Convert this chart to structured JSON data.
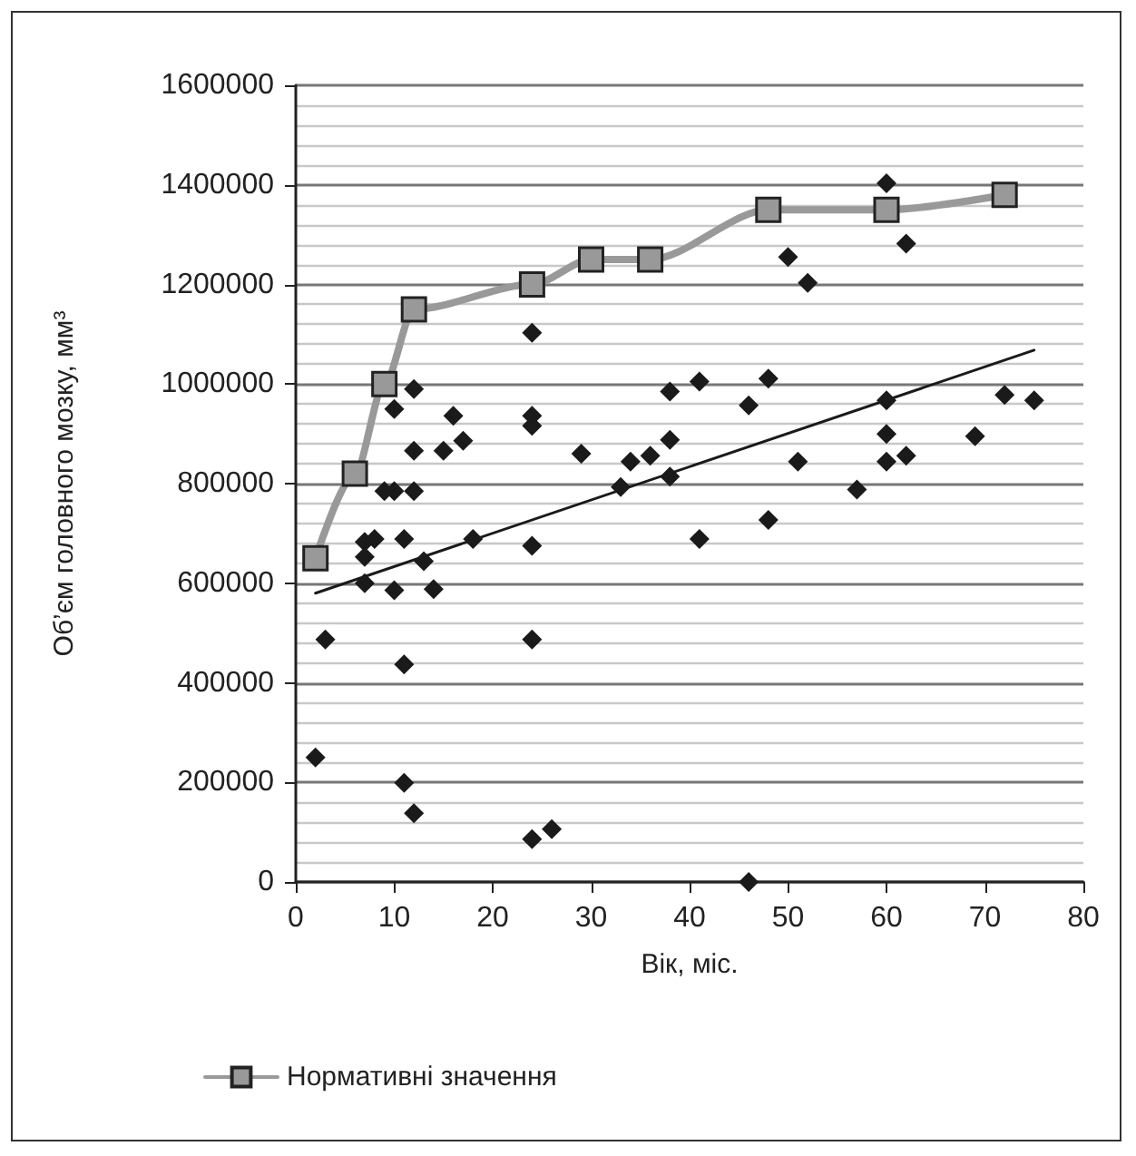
{
  "chart_data": {
    "type": "scatter",
    "xlabel": "Вік, міс.",
    "ylabel": "Об’єм головного мозку, мм³",
    "xlim": [
      0,
      80
    ],
    "xticks": [
      0,
      10,
      20,
      30,
      40,
      50,
      60,
      70,
      80
    ],
    "ylim": [
      0,
      1600000
    ],
    "yticks": [
      0,
      200000,
      400000,
      600000,
      800000,
      1000000,
      1200000,
      1400000,
      1600000
    ],
    "grid": "y",
    "legend": "bottom",
    "series": [
      {
        "color": "#1a1a1a",
        "marker": "diamond",
        "x": [
          2,
          3,
          7,
          7,
          7,
          8,
          9,
          10,
          12,
          10,
          10,
          11,
          11,
          11,
          12,
          12,
          12,
          13,
          14,
          15,
          16,
          17,
          18,
          24,
          24,
          24,
          24,
          24,
          24,
          26,
          29,
          33,
          34,
          36,
          38,
          38,
          38,
          41,
          41,
          46,
          46,
          48,
          48,
          50,
          51,
          52,
          57,
          60,
          60,
          60,
          60,
          62,
          62,
          69,
          72,
          75
        ],
        "values": [
          250000,
          487000,
          683000,
          653000,
          600000,
          689000,
          785000,
          785000,
          785000,
          950000,
          586000,
          689000,
          437000,
          199000,
          990000,
          866000,
          138000,
          644000,
          588000,
          866000,
          936000,
          886000,
          689000,
          1103000,
          936000,
          916000,
          675000,
          487000,
          86000,
          106000,
          860000,
          793000,
          844000,
          856000,
          985000,
          888000,
          814000,
          1005000,
          689000,
          957000,
          0,
          1011000,
          727000,
          1255000,
          844000,
          1203000,
          788000,
          1403000,
          967000,
          900000,
          844000,
          1282000,
          856000,
          895000,
          978000,
          967000
        ]
      },
      {
        "type": "line",
        "color": "#1a1a1a",
        "marker": "none",
        "x": [
          2,
          75
        ],
        "values": [
          580000,
          1068000
        ]
      },
      {
        "type": "line",
        "name": "Нормативні значення",
        "color": "#999999",
        "marker": "square",
        "x": [
          2,
          6,
          9,
          12,
          24,
          30,
          36,
          48,
          60,
          72
        ],
        "values": [
          650000,
          820000,
          1000000,
          1150000,
          1200000,
          1250000,
          1250000,
          1350000,
          1350000,
          1380000
        ]
      }
    ]
  }
}
